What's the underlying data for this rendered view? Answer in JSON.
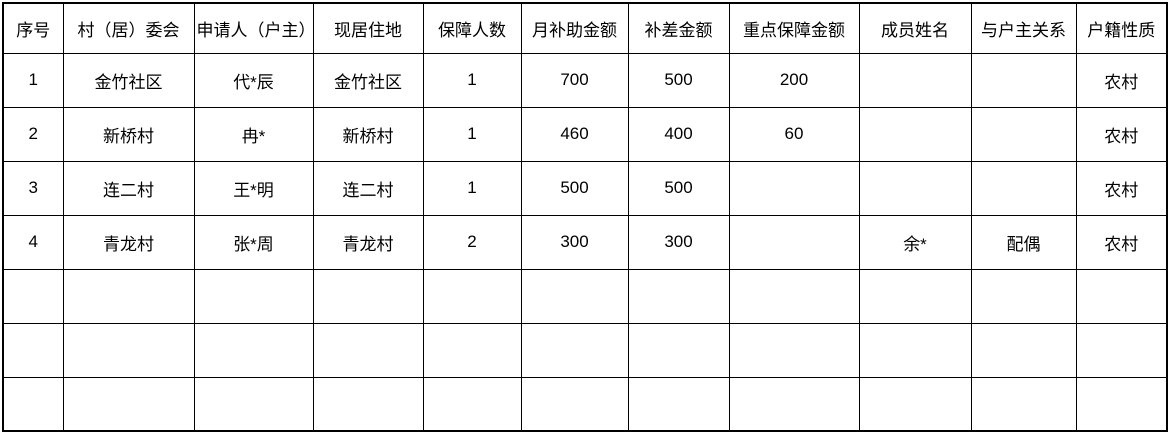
{
  "table": {
    "columns": [
      "序号",
      "村（居）委会",
      "申请人（户主）",
      "现居住地",
      "保障人数",
      "月补助金额",
      "补差金额",
      "重点保障金额",
      "成员姓名",
      "与户主关系",
      "户籍性质"
    ],
    "rows": [
      [
        "1",
        "金竹社区",
        "代*辰",
        "金竹社区",
        "1",
        "700",
        "500",
        "200",
        "",
        "",
        "农村"
      ],
      [
        "2",
        "新桥村",
        "冉*",
        "新桥村",
        "1",
        "460",
        "400",
        "60",
        "",
        "",
        "农村"
      ],
      [
        "3",
        "连二村",
        "王*明",
        "连二村",
        "1",
        "500",
        "500",
        "",
        "",
        "",
        "农村"
      ],
      [
        "4",
        "青龙村",
        "张*周",
        "青龙村",
        "2",
        "300",
        "300",
        "",
        "余*",
        "配偶",
        "农村"
      ],
      [
        "",
        "",
        "",
        "",
        "",
        "",
        "",
        "",
        "",
        "",
        ""
      ],
      [
        "",
        "",
        "",
        "",
        "",
        "",
        "",
        "",
        "",
        "",
        ""
      ],
      [
        "",
        "",
        "",
        "",
        "",
        "",
        "",
        "",
        "",
        "",
        ""
      ]
    ]
  },
  "colors": {
    "border": "#000000",
    "text": "#000000",
    "background": "#ffffff"
  }
}
